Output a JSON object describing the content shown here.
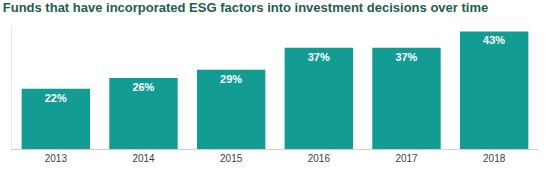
{
  "chart_data": {
    "type": "bar",
    "title": "Funds that have incorporated ESG factors into investment decisions over time",
    "categories": [
      "2013",
      "2014",
      "2015",
      "2016",
      "2017",
      "2018"
    ],
    "values": [
      22,
      26,
      29,
      37,
      37,
      43
    ],
    "value_labels": [
      "22%",
      "26%",
      "29%",
      "37%",
      "37%",
      "43%"
    ],
    "color": "#139c93",
    "ylim": [
      0,
      45
    ],
    "grid": false,
    "data_labels": true,
    "tick_labels": "x"
  }
}
